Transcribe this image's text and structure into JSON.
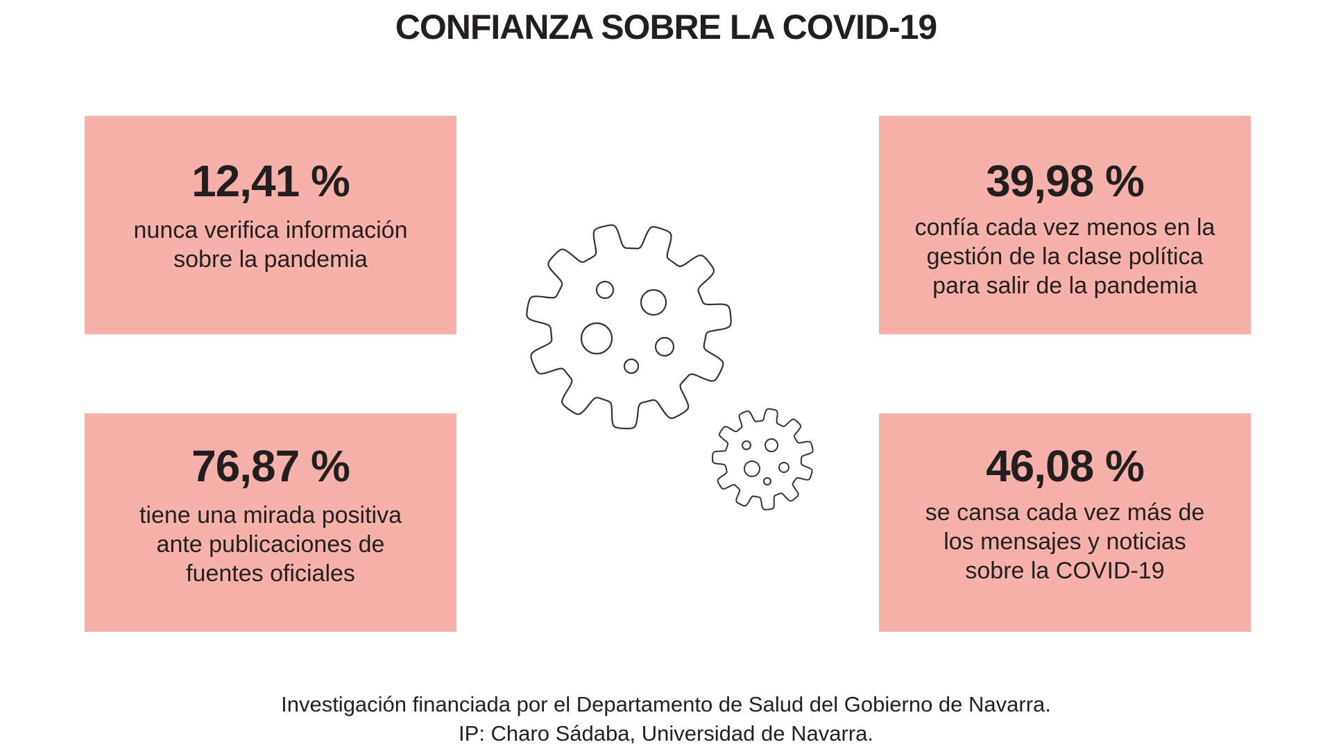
{
  "title": "CONFIANZA SOBRE LA COVID-19",
  "cards": [
    {
      "value": "12,41 %",
      "lines": [
        "nunca verifica información",
        "sobre la pandemia"
      ]
    },
    {
      "value": "39,98 %",
      "lines": [
        "confía cada vez menos en la",
        "gestión de la clase política",
        "para salir de la pandemia"
      ]
    },
    {
      "value": "76,87 %",
      "lines": [
        "tiene una mirada positiva",
        "ante publicaciones de",
        "fuentes oficiales"
      ]
    },
    {
      "value": "46,08 %",
      "lines": [
        "se cansa cada vez más de",
        "los mensajes y noticias",
        "sobre la COVID-19"
      ]
    }
  ],
  "footer": {
    "line1": "Investigación financiada por el Departamento de Salud del Gobierno de Navarra.",
    "line2": "IP: Charo Sádaba, Universidad de Navarra."
  },
  "colors": {
    "card": "#f7b1ab",
    "text": "#231f20"
  },
  "icons": [
    "virus-icon-large",
    "virus-icon-small"
  ]
}
